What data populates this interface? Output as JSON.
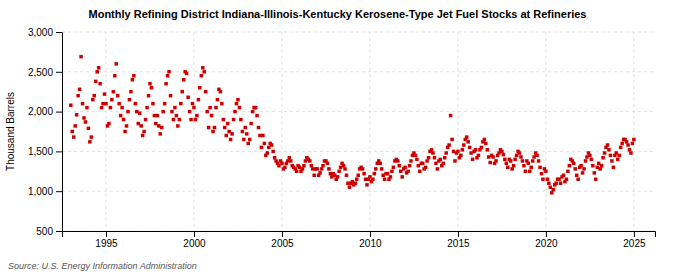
{
  "chart_data": {
    "type": "scatter",
    "title": "Monthly Refining District Indiana-Illinois-Kentucky Kerosene-Type Jet Fuel Stocks at Refineries",
    "ylabel": "Thousand Barrels",
    "annotations": [
      "Source: U.S. Energy Information Administration"
    ],
    "color": "#cc0000",
    "marker": "square",
    "grid": true,
    "xlim": [
      1992.5,
      2026.2
    ],
    "xticks": [
      1995,
      2000,
      2005,
      2010,
      2015,
      2020,
      2025
    ],
    "ylim": [
      500,
      3000
    ],
    "yticks": [
      500,
      {
        "value": 1000,
        "label": "1,000"
      },
      {
        "value": 1500,
        "label": "1,500"
      },
      {
        "value": 2000,
        "label": "2,000"
      },
      {
        "value": 2500,
        "label": "2,500"
      },
      {
        "value": 3000,
        "label": "3,000"
      }
    ],
    "x": [
      1993.0,
      1993.083,
      1993.167,
      1993.25,
      1993.333,
      1993.417,
      1993.5,
      1993.583,
      1993.667,
      1993.75,
      1993.833,
      1993.917,
      1994.0,
      1994.083,
      1994.167,
      1994.25,
      1994.333,
      1994.417,
      1994.5,
      1994.583,
      1994.667,
      1994.75,
      1994.833,
      1994.917,
      1995.0,
      1995.083,
      1995.167,
      1995.25,
      1995.333,
      1995.417,
      1995.5,
      1995.583,
      1995.667,
      1995.75,
      1995.833,
      1995.917,
      1996.0,
      1996.083,
      1996.167,
      1996.25,
      1996.333,
      1996.417,
      1996.5,
      1996.583,
      1996.667,
      1996.75,
      1996.833,
      1996.917,
      1997.0,
      1997.083,
      1997.167,
      1997.25,
      1997.333,
      1997.417,
      1997.5,
      1997.583,
      1997.667,
      1997.75,
      1997.833,
      1997.917,
      1998.0,
      1998.083,
      1998.167,
      1998.25,
      1998.333,
      1998.417,
      1998.5,
      1998.583,
      1998.667,
      1998.75,
      1998.833,
      1998.917,
      1999.0,
      1999.083,
      1999.167,
      1999.25,
      1999.333,
      1999.417,
      1999.5,
      1999.583,
      1999.667,
      1999.75,
      1999.833,
      1999.917,
      2000.0,
      2000.083,
      2000.167,
      2000.25,
      2000.333,
      2000.417,
      2000.5,
      2000.583,
      2000.667,
      2000.75,
      2000.833,
      2000.917,
      2001.0,
      2001.083,
      2001.167,
      2001.25,
      2001.333,
      2001.417,
      2001.5,
      2001.583,
      2001.667,
      2001.75,
      2001.833,
      2001.917,
      2002.0,
      2002.083,
      2002.167,
      2002.25,
      2002.333,
      2002.417,
      2002.5,
      2002.583,
      2002.667,
      2002.75,
      2002.833,
      2002.917,
      2003.0,
      2003.083,
      2003.167,
      2003.25,
      2003.333,
      2003.417,
      2003.5,
      2003.583,
      2003.667,
      2003.75,
      2003.833,
      2003.917,
      2004.0,
      2004.083,
      2004.167,
      2004.25,
      2004.333,
      2004.417,
      2004.5,
      2004.583,
      2004.667,
      2004.75,
      2004.833,
      2004.917,
      2005.0,
      2005.083,
      2005.167,
      2005.25,
      2005.333,
      2005.417,
      2005.5,
      2005.583,
      2005.667,
      2005.75,
      2005.833,
      2005.917,
      2006.0,
      2006.083,
      2006.167,
      2006.25,
      2006.333,
      2006.417,
      2006.5,
      2006.583,
      2006.667,
      2006.75,
      2006.833,
      2006.917,
      2007.0,
      2007.083,
      2007.167,
      2007.25,
      2007.333,
      2007.417,
      2007.5,
      2007.583,
      2007.667,
      2007.75,
      2007.833,
      2007.917,
      2008.0,
      2008.083,
      2008.167,
      2008.25,
      2008.333,
      2008.417,
      2008.5,
      2008.583,
      2008.667,
      2008.75,
      2008.833,
      2008.917,
      2009.0,
      2009.083,
      2009.167,
      2009.25,
      2009.333,
      2009.417,
      2009.5,
      2009.583,
      2009.667,
      2009.75,
      2009.833,
      2009.917,
      2010.0,
      2010.083,
      2010.167,
      2010.25,
      2010.333,
      2010.417,
      2010.5,
      2010.583,
      2010.667,
      2010.75,
      2010.833,
      2010.917,
      2011.0,
      2011.083,
      2011.167,
      2011.25,
      2011.333,
      2011.417,
      2011.5,
      2011.583,
      2011.667,
      2011.75,
      2011.833,
      2011.917,
      2012.0,
      2012.083,
      2012.167,
      2012.25,
      2012.333,
      2012.417,
      2012.5,
      2012.583,
      2012.667,
      2012.75,
      2012.833,
      2012.917,
      2013.0,
      2013.083,
      2013.167,
      2013.25,
      2013.333,
      2013.417,
      2013.5,
      2013.583,
      2013.667,
      2013.75,
      2013.833,
      2013.917,
      2014.0,
      2014.083,
      2014.167,
      2014.25,
      2014.333,
      2014.417,
      2014.5,
      2014.583,
      2014.667,
      2014.75,
      2014.833,
      2014.917,
      2015.0,
      2015.083,
      2015.167,
      2015.25,
      2015.333,
      2015.417,
      2015.5,
      2015.583,
      2015.667,
      2015.75,
      2015.833,
      2015.917,
      2016.0,
      2016.083,
      2016.167,
      2016.25,
      2016.333,
      2016.417,
      2016.5,
      2016.583,
      2016.667,
      2016.75,
      2016.833,
      2016.917,
      2017.0,
      2017.083,
      2017.167,
      2017.25,
      2017.333,
      2017.417,
      2017.5,
      2017.583,
      2017.667,
      2017.75,
      2017.833,
      2017.917,
      2018.0,
      2018.083,
      2018.167,
      2018.25,
      2018.333,
      2018.417,
      2018.5,
      2018.583,
      2018.667,
      2018.75,
      2018.833,
      2018.917,
      2019.0,
      2019.083,
      2019.167,
      2019.25,
      2019.333,
      2019.417,
      2019.5,
      2019.583,
      2019.667,
      2019.75,
      2019.833,
      2019.917,
      2020.0,
      2020.083,
      2020.167,
      2020.25,
      2020.333,
      2020.417,
      2020.5,
      2020.583,
      2020.667,
      2020.75,
      2020.833,
      2020.917,
      2021.0,
      2021.083,
      2021.167,
      2021.25,
      2021.333,
      2021.417,
      2021.5,
      2021.583,
      2021.667,
      2021.75,
      2021.833,
      2021.917,
      2022.0,
      2022.083,
      2022.167,
      2022.25,
      2022.333,
      2022.417,
      2022.5,
      2022.583,
      2022.667,
      2022.75,
      2022.833,
      2022.917,
      2023.0,
      2023.083,
      2023.167,
      2023.25,
      2023.333,
      2023.417,
      2023.5,
      2023.583,
      2023.667,
      2023.75,
      2023.833,
      2023.917,
      2024.0,
      2024.083,
      2024.167,
      2024.25,
      2024.333,
      2024.417,
      2024.5,
      2024.583,
      2024.667,
      2024.75,
      2024.833,
      2024.917,
      2025.0
    ],
    "values": [
      2080,
      1750,
      1680,
      1820,
      1960,
      2200,
      2280,
      2690,
      2100,
      1920,
      1870,
      2050,
      1790,
      1620,
      1680,
      2150,
      2200,
      2380,
      2500,
      2550,
      2350,
      2050,
      2100,
      2220,
      2100,
      1820,
      1850,
      2050,
      2150,
      2250,
      2450,
      2600,
      2200,
      2100,
      1950,
      2050,
      1900,
      1750,
      1820,
      2000,
      2150,
      2250,
      2400,
      2450,
      2100,
      2000,
      1850,
      1980,
      1820,
      1700,
      1750,
      1900,
      2050,
      2200,
      2350,
      2300,
      2100,
      1950,
      1850,
      1950,
      1820,
      1720,
      1800,
      2000,
      2100,
      2350,
      2450,
      2500,
      2200,
      2000,
      1900,
      2050,
      1950,
      1820,
      1900,
      2100,
      2250,
      2400,
      2500,
      2480,
      2180,
      2000,
      1900,
      2100,
      2050,
      1900,
      1950,
      2150,
      2300,
      2450,
      2550,
      2500,
      2250,
      2000,
      1800,
      2050,
      1950,
      1750,
      1800,
      2050,
      2150,
      2280,
      2250,
      2100,
      1900,
      1800,
      1700,
      1850,
      1750,
      1650,
      1720,
      1900,
      2000,
      2100,
      2150,
      2050,
      1900,
      1750,
      1650,
      1800,
      1720,
      1600,
      1650,
      1850,
      2000,
      2050,
      2050,
      1950,
      1800,
      1700,
      1550,
      1700,
      1600,
      1450,
      1480,
      1550,
      1600,
      1580,
      1500,
      1420,
      1380,
      1350,
      1320,
      1380,
      1350,
      1280,
      1300,
      1350,
      1380,
      1420,
      1380,
      1320,
      1300,
      1280,
      1250,
      1320,
      1300,
      1250,
      1280,
      1320,
      1380,
      1420,
      1400,
      1380,
      1320,
      1280,
      1200,
      1280,
      1280,
      1200,
      1230,
      1280,
      1320,
      1380,
      1380,
      1350,
      1280,
      1220,
      1180,
      1220,
      1200,
      1150,
      1180,
      1250,
      1300,
      1350,
      1320,
      1280,
      1200,
      1100,
      1050,
      1100,
      1120,
      1080,
      1100,
      1150,
      1200,
      1280,
      1300,
      1280,
      1220,
      1150,
      1080,
      1150,
      1180,
      1120,
      1150,
      1220,
      1280,
      1350,
      1380,
      1350,
      1280,
      1200,
      1150,
      1220,
      1220,
      1150,
      1180,
      1250,
      1300,
      1380,
      1400,
      1380,
      1320,
      1250,
      1180,
      1280,
      1300,
      1230,
      1250,
      1320,
      1380,
      1450,
      1480,
      1450,
      1400,
      1320,
      1250,
      1350,
      1350,
      1280,
      1300,
      1380,
      1420,
      1500,
      1520,
      1480,
      1420,
      1350,
      1280,
      1380,
      1400,
      1320,
      1350,
      1420,
      1480,
      1550,
      1580,
      1950,
      1650,
      1500,
      1380,
      1480,
      1500,
      1420,
      1450,
      1520,
      1580,
      1650,
      1680,
      1620,
      1550,
      1480,
      1400,
      1500,
      1520,
      1420,
      1450,
      1520,
      1550,
      1620,
      1650,
      1600,
      1520,
      1430,
      1360,
      1450,
      1430,
      1350,
      1380,
      1450,
      1480,
      1520,
      1500,
      1460,
      1400,
      1350,
      1300,
      1400,
      1380,
      1280,
      1320,
      1400,
      1450,
      1500,
      1480,
      1430,
      1380,
      1320,
      1250,
      1380,
      1350,
      1250,
      1300,
      1380,
      1430,
      1480,
      1450,
      1380,
      1300,
      1220,
      1150,
      1280,
      1250,
      1150,
      1100,
      1050,
      980,
      1020,
      1080,
      1100,
      1150,
      1150,
      1100,
      1180,
      1200,
      1120,
      1150,
      1250,
      1320,
      1400,
      1380,
      1350,
      1280,
      1200,
      1150,
      1300,
      1320,
      1230,
      1280,
      1380,
      1430,
      1480,
      1450,
      1400,
      1320,
      1230,
      1150,
      1300,
      1350,
      1280,
      1320,
      1420,
      1480,
      1550,
      1580,
      1520,
      1450,
      1380,
      1300,
      1450,
      1480,
      1400,
      1450,
      1550,
      1600,
      1650,
      1650,
      1620,
      1580,
      1520,
      1480,
      1600,
      1650
    ]
  }
}
